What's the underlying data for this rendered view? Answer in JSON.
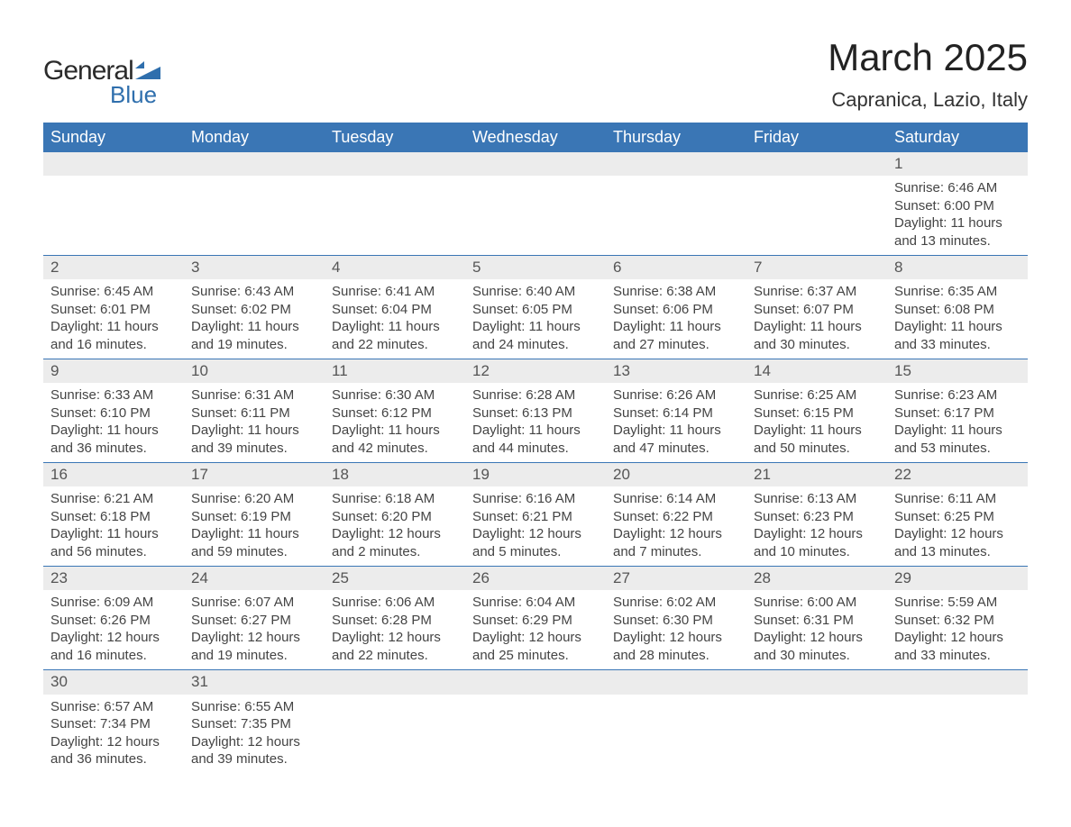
{
  "logo": {
    "text1": "General",
    "text2": "Blue",
    "shape_color": "#2f6fad"
  },
  "title": "March 2025",
  "location": "Capranica, Lazio, Italy",
  "colors": {
    "header_bg": "#3a76b5",
    "header_text": "#ffffff",
    "daynum_bg": "#ececec",
    "border": "#3a76b5",
    "body_text": "#444444",
    "title_text": "#222222"
  },
  "typography": {
    "title_fontsize": 42,
    "location_fontsize": 22,
    "header_fontsize": 18,
    "daynum_fontsize": 17,
    "cell_fontsize": 15
  },
  "dayHeaders": [
    "Sunday",
    "Monday",
    "Tuesday",
    "Wednesday",
    "Thursday",
    "Friday",
    "Saturday"
  ],
  "weeks": [
    [
      null,
      null,
      null,
      null,
      null,
      null,
      {
        "n": "1",
        "sr": "Sunrise: 6:46 AM",
        "ss": "Sunset: 6:00 PM",
        "dl": "Daylight: 11 hours and 13 minutes."
      }
    ],
    [
      {
        "n": "2",
        "sr": "Sunrise: 6:45 AM",
        "ss": "Sunset: 6:01 PM",
        "dl": "Daylight: 11 hours and 16 minutes."
      },
      {
        "n": "3",
        "sr": "Sunrise: 6:43 AM",
        "ss": "Sunset: 6:02 PM",
        "dl": "Daylight: 11 hours and 19 minutes."
      },
      {
        "n": "4",
        "sr": "Sunrise: 6:41 AM",
        "ss": "Sunset: 6:04 PM",
        "dl": "Daylight: 11 hours and 22 minutes."
      },
      {
        "n": "5",
        "sr": "Sunrise: 6:40 AM",
        "ss": "Sunset: 6:05 PM",
        "dl": "Daylight: 11 hours and 24 minutes."
      },
      {
        "n": "6",
        "sr": "Sunrise: 6:38 AM",
        "ss": "Sunset: 6:06 PM",
        "dl": "Daylight: 11 hours and 27 minutes."
      },
      {
        "n": "7",
        "sr": "Sunrise: 6:37 AM",
        "ss": "Sunset: 6:07 PM",
        "dl": "Daylight: 11 hours and 30 minutes."
      },
      {
        "n": "8",
        "sr": "Sunrise: 6:35 AM",
        "ss": "Sunset: 6:08 PM",
        "dl": "Daylight: 11 hours and 33 minutes."
      }
    ],
    [
      {
        "n": "9",
        "sr": "Sunrise: 6:33 AM",
        "ss": "Sunset: 6:10 PM",
        "dl": "Daylight: 11 hours and 36 minutes."
      },
      {
        "n": "10",
        "sr": "Sunrise: 6:31 AM",
        "ss": "Sunset: 6:11 PM",
        "dl": "Daylight: 11 hours and 39 minutes."
      },
      {
        "n": "11",
        "sr": "Sunrise: 6:30 AM",
        "ss": "Sunset: 6:12 PM",
        "dl": "Daylight: 11 hours and 42 minutes."
      },
      {
        "n": "12",
        "sr": "Sunrise: 6:28 AM",
        "ss": "Sunset: 6:13 PM",
        "dl": "Daylight: 11 hours and 44 minutes."
      },
      {
        "n": "13",
        "sr": "Sunrise: 6:26 AM",
        "ss": "Sunset: 6:14 PM",
        "dl": "Daylight: 11 hours and 47 minutes."
      },
      {
        "n": "14",
        "sr": "Sunrise: 6:25 AM",
        "ss": "Sunset: 6:15 PM",
        "dl": "Daylight: 11 hours and 50 minutes."
      },
      {
        "n": "15",
        "sr": "Sunrise: 6:23 AM",
        "ss": "Sunset: 6:17 PM",
        "dl": "Daylight: 11 hours and 53 minutes."
      }
    ],
    [
      {
        "n": "16",
        "sr": "Sunrise: 6:21 AM",
        "ss": "Sunset: 6:18 PM",
        "dl": "Daylight: 11 hours and 56 minutes."
      },
      {
        "n": "17",
        "sr": "Sunrise: 6:20 AM",
        "ss": "Sunset: 6:19 PM",
        "dl": "Daylight: 11 hours and 59 minutes."
      },
      {
        "n": "18",
        "sr": "Sunrise: 6:18 AM",
        "ss": "Sunset: 6:20 PM",
        "dl": "Daylight: 12 hours and 2 minutes."
      },
      {
        "n": "19",
        "sr": "Sunrise: 6:16 AM",
        "ss": "Sunset: 6:21 PM",
        "dl": "Daylight: 12 hours and 5 minutes."
      },
      {
        "n": "20",
        "sr": "Sunrise: 6:14 AM",
        "ss": "Sunset: 6:22 PM",
        "dl": "Daylight: 12 hours and 7 minutes."
      },
      {
        "n": "21",
        "sr": "Sunrise: 6:13 AM",
        "ss": "Sunset: 6:23 PM",
        "dl": "Daylight: 12 hours and 10 minutes."
      },
      {
        "n": "22",
        "sr": "Sunrise: 6:11 AM",
        "ss": "Sunset: 6:25 PM",
        "dl": "Daylight: 12 hours and 13 minutes."
      }
    ],
    [
      {
        "n": "23",
        "sr": "Sunrise: 6:09 AM",
        "ss": "Sunset: 6:26 PM",
        "dl": "Daylight: 12 hours and 16 minutes."
      },
      {
        "n": "24",
        "sr": "Sunrise: 6:07 AM",
        "ss": "Sunset: 6:27 PM",
        "dl": "Daylight: 12 hours and 19 minutes."
      },
      {
        "n": "25",
        "sr": "Sunrise: 6:06 AM",
        "ss": "Sunset: 6:28 PM",
        "dl": "Daylight: 12 hours and 22 minutes."
      },
      {
        "n": "26",
        "sr": "Sunrise: 6:04 AM",
        "ss": "Sunset: 6:29 PM",
        "dl": "Daylight: 12 hours and 25 minutes."
      },
      {
        "n": "27",
        "sr": "Sunrise: 6:02 AM",
        "ss": "Sunset: 6:30 PM",
        "dl": "Daylight: 12 hours and 28 minutes."
      },
      {
        "n": "28",
        "sr": "Sunrise: 6:00 AM",
        "ss": "Sunset: 6:31 PM",
        "dl": "Daylight: 12 hours and 30 minutes."
      },
      {
        "n": "29",
        "sr": "Sunrise: 5:59 AM",
        "ss": "Sunset: 6:32 PM",
        "dl": "Daylight: 12 hours and 33 minutes."
      }
    ],
    [
      {
        "n": "30",
        "sr": "Sunrise: 6:57 AM",
        "ss": "Sunset: 7:34 PM",
        "dl": "Daylight: 12 hours and 36 minutes."
      },
      {
        "n": "31",
        "sr": "Sunrise: 6:55 AM",
        "ss": "Sunset: 7:35 PM",
        "dl": "Daylight: 12 hours and 39 minutes."
      },
      null,
      null,
      null,
      null,
      null
    ]
  ]
}
